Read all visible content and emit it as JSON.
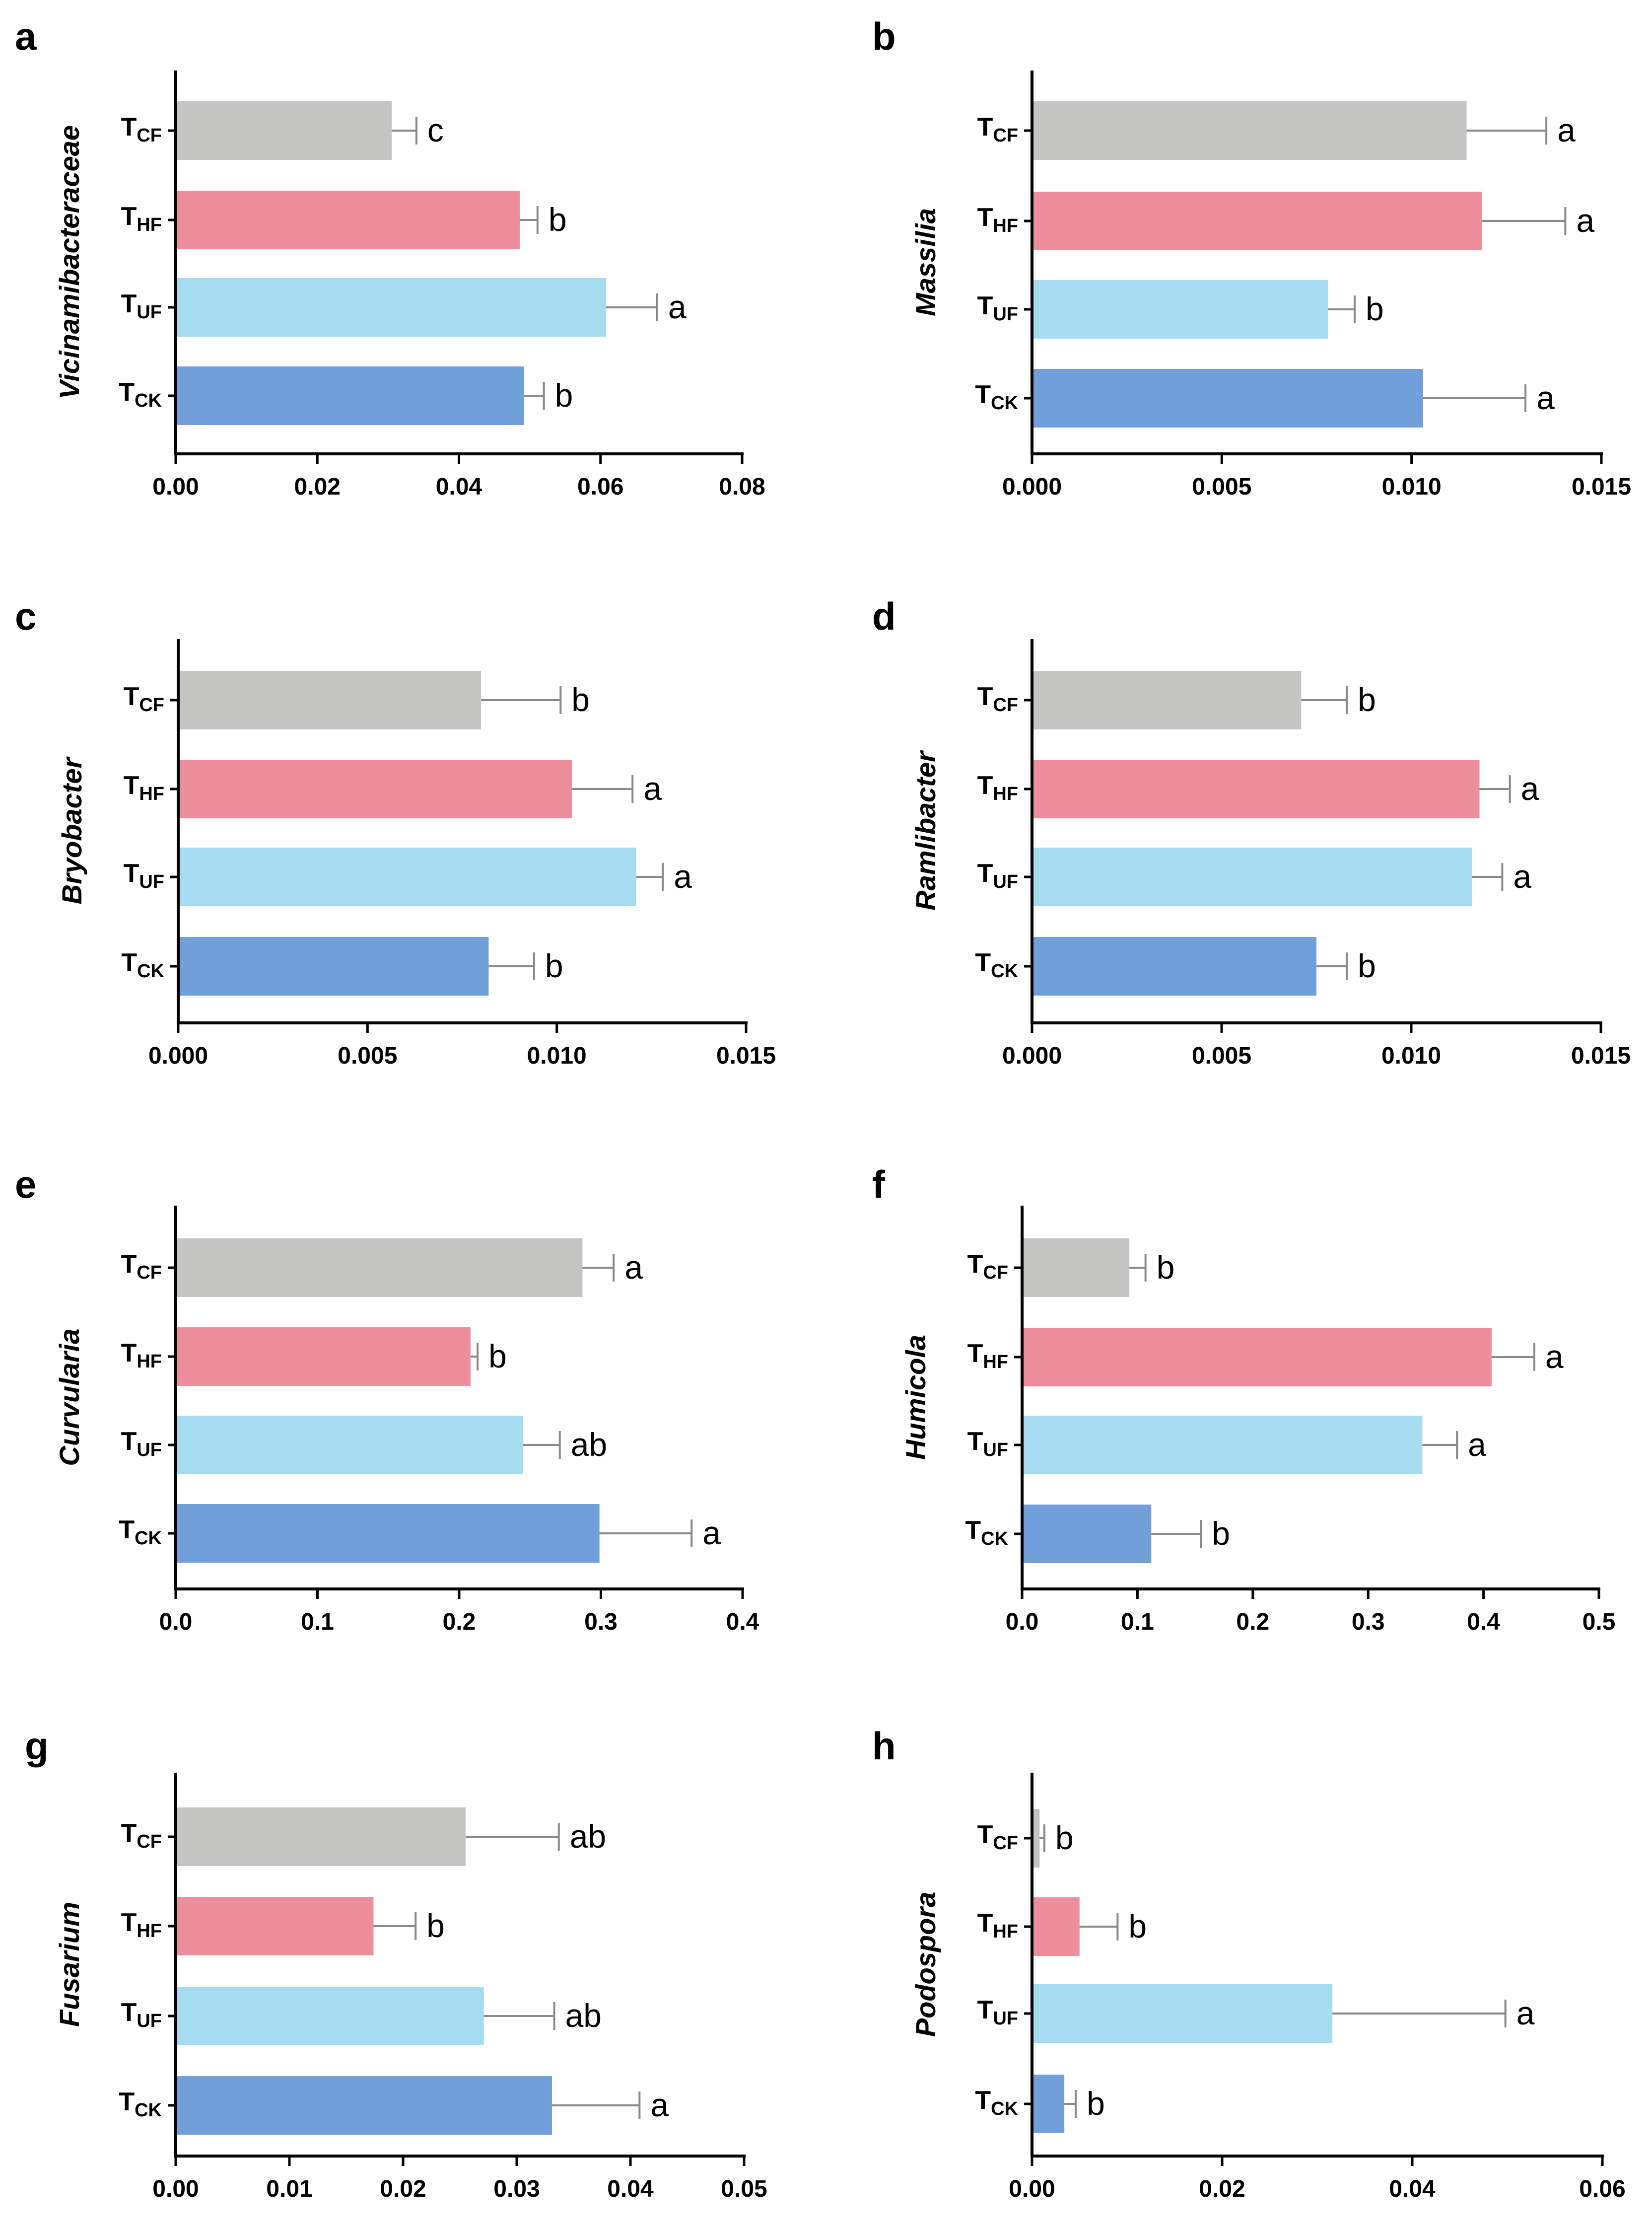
{
  "colors": {
    "T_CF": "#c4c5c2",
    "T_HF": "#ec8e9b",
    "T_UF": "#a6dcf0",
    "T_CK": "#719fd9",
    "axis": "#000000",
    "errorbar": "#8a8a8a"
  },
  "category_labels": [
    {
      "main": "T",
      "sub": "CF"
    },
    {
      "main": "T",
      "sub": "HF"
    },
    {
      "main": "T",
      "sub": "UF"
    },
    {
      "main": "T",
      "sub": "CK"
    }
  ],
  "chart_data": [
    {
      "panel": "a",
      "type": "bar",
      "orientation": "horizontal",
      "ylabel": "Vicinamibacteraceae",
      "xlim": [
        0,
        0.08
      ],
      "xticks": [
        "0.00",
        "0.02",
        "0.04",
        "0.06",
        "0.08"
      ],
      "categories": [
        "TCF",
        "THF",
        "TUF",
        "TCK"
      ],
      "values": [
        0.0305,
        0.0486,
        0.0608,
        0.0492
      ],
      "errors": [
        0.0035,
        0.0025,
        0.0072,
        0.0028
      ],
      "significance": [
        "c",
        "b",
        "a",
        "b"
      ]
    },
    {
      "panel": "b",
      "type": "bar",
      "orientation": "horizontal",
      "ylabel": "Massilia",
      "xlim": [
        0,
        0.015
      ],
      "xticks": [
        "0.000",
        "0.005",
        "0.010",
        "0.015"
      ],
      "categories": [
        "TCF",
        "THF",
        "TUF",
        "TCK"
      ],
      "values": [
        0.01145,
        0.01185,
        0.0078,
        0.0103
      ],
      "errors": [
        0.0021,
        0.0022,
        0.0007,
        0.0027
      ],
      "significance": [
        "a",
        "a",
        "b",
        "a"
      ]
    },
    {
      "panel": "c",
      "type": "bar",
      "orientation": "horizontal",
      "ylabel": "Bryobacter",
      "xlim": [
        0,
        0.015
      ],
      "xticks": [
        "0.000",
        "0.005",
        "0.010",
        "0.015"
      ],
      "categories": [
        "TCF",
        "THF",
        "TUF",
        "TCK"
      ],
      "values": [
        0.008,
        0.0104,
        0.0121,
        0.0082
      ],
      "errors": [
        0.0021,
        0.0016,
        0.0007,
        0.0012
      ],
      "significance": [
        "b",
        "a",
        "a",
        "b"
      ]
    },
    {
      "panel": "d",
      "type": "bar",
      "orientation": "horizontal",
      "ylabel": "Ramlibacter",
      "xlim": [
        0,
        0.015
      ],
      "xticks": [
        "0.000",
        "0.005",
        "0.010",
        "0.015"
      ],
      "categories": [
        "TCF",
        "THF",
        "TUF",
        "TCK"
      ],
      "values": [
        0.0071,
        0.0118,
        0.0116,
        0.0075
      ],
      "errors": [
        0.0012,
        0.0008,
        0.0008,
        0.0008
      ],
      "significance": [
        "b",
        "a",
        "a",
        "b"
      ]
    },
    {
      "panel": "e",
      "type": "bar",
      "orientation": "horizontal",
      "ylabel": "Curvularia",
      "xlim": [
        0,
        0.4
      ],
      "xticks": [
        "0.0",
        "0.1",
        "0.2",
        "0.3",
        "0.4"
      ],
      "categories": [
        "TCF",
        "THF",
        "TUF",
        "TCK"
      ],
      "values": [
        0.287,
        0.208,
        0.245,
        0.299
      ],
      "errors": [
        0.022,
        0.005,
        0.026,
        0.065
      ],
      "significance": [
        "a",
        "b",
        "ab",
        "a"
      ]
    },
    {
      "panel": "f",
      "type": "bar",
      "orientation": "horizontal",
      "ylabel": "Humicola",
      "xlim": [
        0,
        0.5
      ],
      "xticks": [
        "0.0",
        "0.1",
        "0.2",
        "0.3",
        "0.4",
        "0.5"
      ],
      "categories": [
        "TCF",
        "THF",
        "TUF",
        "TCK"
      ],
      "values": [
        0.093,
        0.407,
        0.347,
        0.112
      ],
      "errors": [
        0.014,
        0.037,
        0.03,
        0.043
      ],
      "significance": [
        "b",
        "a",
        "a",
        "b"
      ]
    },
    {
      "panel": "g",
      "type": "bar",
      "orientation": "horizontal",
      "ylabel": "Fusarium",
      "xlim": [
        0,
        0.05
      ],
      "xticks": [
        "0.00",
        "0.01",
        "0.02",
        "0.03",
        "0.04",
        "0.05"
      ],
      "categories": [
        "TCF",
        "THF",
        "TUF",
        "TCK"
      ],
      "values": [
        0.0255,
        0.0174,
        0.0271,
        0.0331
      ],
      "errors": [
        0.0082,
        0.0037,
        0.0062,
        0.0077
      ],
      "significance": [
        "ab",
        "b",
        "ab",
        "a"
      ]
    },
    {
      "panel": "h",
      "type": "bar",
      "orientation": "horizontal",
      "ylabel": "Podospora",
      "xlim": [
        0,
        0.06
      ],
      "xticks": [
        "0.00",
        "0.02",
        "0.04",
        "0.06"
      ],
      "categories": [
        "TCF",
        "THF",
        "TUF",
        "TCK"
      ],
      "values": [
        0.0008,
        0.005,
        0.0316,
        0.0034
      ],
      "errors": [
        0.0005,
        0.004,
        0.0182,
        0.0012
      ],
      "significance": [
        "b",
        "b",
        "a",
        "b"
      ]
    }
  ]
}
